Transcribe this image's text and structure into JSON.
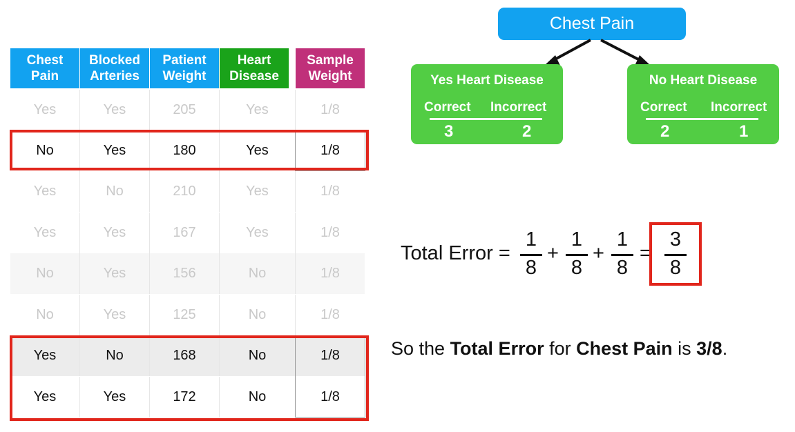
{
  "table": {
    "headers": [
      {
        "label": "Chest\nPain",
        "color": "#12a2f0"
      },
      {
        "label": "Blocked\nArteries",
        "color": "#12a2f0"
      },
      {
        "label": "Patient\nWeight",
        "color": "#12a2f0"
      },
      {
        "label": "Heart\nDisease",
        "color": "#1aa31a"
      },
      {
        "label": "Sample\nWeight",
        "color": "#c0307a"
      }
    ],
    "rows": [
      [
        "Yes",
        "Yes",
        "205",
        "Yes",
        "1/8"
      ],
      [
        "No",
        "Yes",
        "180",
        "Yes",
        "1/8"
      ],
      [
        "Yes",
        "No",
        "210",
        "Yes",
        "1/8"
      ],
      [
        "Yes",
        "Yes",
        "167",
        "Yes",
        "1/8"
      ],
      [
        "No",
        "Yes",
        "156",
        "No",
        "1/8"
      ],
      [
        "No",
        "Yes",
        "125",
        "No",
        "1/8"
      ],
      [
        "Yes",
        "No",
        "168",
        "No",
        "1/8"
      ],
      [
        "Yes",
        "Yes",
        "172",
        "No",
        "1/8"
      ]
    ]
  },
  "tree": {
    "root": "Chest Pain",
    "left": {
      "title": "Yes Heart Disease",
      "correct_label": "Correct",
      "incorrect_label": "Incorrect",
      "correct": "3",
      "incorrect": "2"
    },
    "right": {
      "title": "No Heart Disease",
      "correct_label": "Correct",
      "incorrect_label": "Incorrect",
      "correct": "2",
      "incorrect": "1"
    }
  },
  "formula": {
    "label": "Total Error =",
    "terms": [
      {
        "num": "1",
        "den": "8"
      },
      {
        "num": "1",
        "den": "8"
      },
      {
        "num": "1",
        "den": "8"
      }
    ],
    "plus": "+",
    "equals": "=",
    "result": {
      "num": "3",
      "den": "8"
    }
  },
  "summary": {
    "part1": "So the ",
    "bold1": "Total Error",
    "part2": " for ",
    "bold2": "Chest Pain",
    "part3": " is ",
    "bold3": "3/8",
    "part4": "."
  },
  "colors": {
    "highlight": "#e1261c",
    "leaf": "#52cd44",
    "root": "#12a2f0"
  }
}
